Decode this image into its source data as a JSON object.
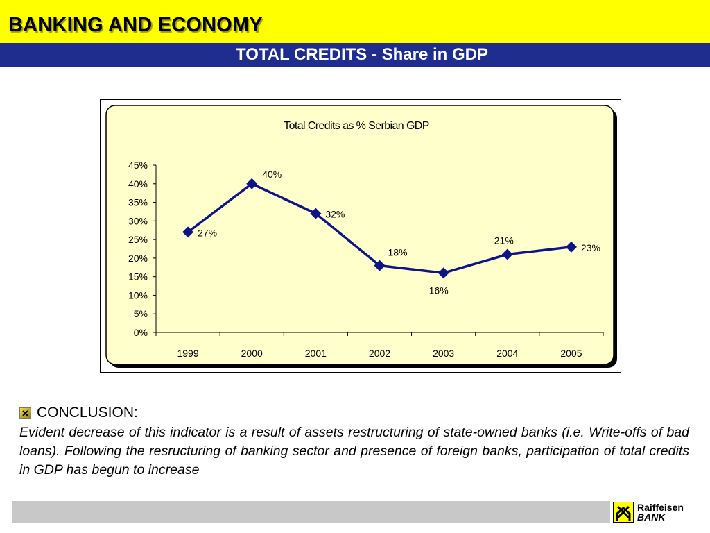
{
  "header": {
    "title": "BANKING AND ECONOMY",
    "subtitle": "TOTAL CREDITS - Share in GDP"
  },
  "colors": {
    "header_bg": "#ffff00",
    "subbar_bg": "#1f2d8f",
    "plot_bg": "#ffffcc",
    "series": "#0d1488"
  },
  "chart_data": {
    "type": "line",
    "title": "Total Credits as % Serbian GDP",
    "xlabel": "",
    "ylabel": "",
    "categories": [
      "1999",
      "2000",
      "2001",
      "2002",
      "2003",
      "2004",
      "2005"
    ],
    "series": [
      {
        "values": [
          27,
          40,
          32,
          18,
          16,
          21,
          23
        ],
        "labels": [
          "27%",
          "40%",
          "32%",
          "18%",
          "16%",
          "21%",
          "23%"
        ],
        "marker": "diamond"
      }
    ],
    "ylim": [
      0,
      45
    ],
    "yticks": [
      "0%",
      "5%",
      "10%",
      "15%",
      "20%",
      "25%",
      "30%",
      "35%",
      "40%",
      "45%"
    ],
    "grid": false,
    "legend": "none"
  },
  "conclusion": {
    "icon": "checkbox-x-icon",
    "title": "CONCLUSION:",
    "text": "Evident decrease of this indicator is a result of assets restructuring of state-owned banks (i.e. Write-offs of bad loans). Following the resructuring of banking sector and presence of foreign banks, participation of total credits in GDP has begun to increase"
  },
  "footer": {
    "logo_line1": "Raiffeisen",
    "logo_line2": "BANK"
  }
}
